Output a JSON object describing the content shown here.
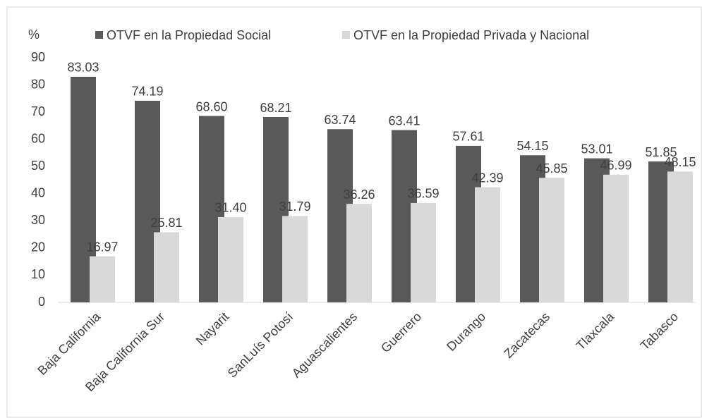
{
  "chart_data": {
    "type": "bar",
    "y_axis_label": "%",
    "categories": [
      "Baja California",
      "Baja California Sur",
      "Nayarit",
      "SanLuís Potosí",
      "Aguascalientes",
      "Guerrero",
      "Durango",
      "Zacatecas",
      "Tlaxcala",
      "Tabasco"
    ],
    "series": [
      {
        "name": "OTVF en la Propiedad Social",
        "color": "#595959",
        "values": [
          83.03,
          74.19,
          68.6,
          68.21,
          63.74,
          63.41,
          57.61,
          54.15,
          53.01,
          51.85
        ],
        "value_labels": [
          "83.03",
          "74.19",
          "68.60",
          "68.21",
          "63.74",
          "63.41",
          "57.61",
          "54.15",
          "53.01",
          "51.85"
        ]
      },
      {
        "name": "OTVF en la Propiedad Privada y Nacional",
        "color": "#d9d9d9",
        "values": [
          16.97,
          25.81,
          31.4,
          31.79,
          36.26,
          36.59,
          42.39,
          45.85,
          46.99,
          48.15
        ],
        "value_labels": [
          "16.97",
          "25.81",
          "31.40",
          "31.79",
          "36.26",
          "36.59",
          "42.39",
          "45.85",
          "46.99",
          "48.15"
        ]
      }
    ],
    "ylim": [
      0,
      90
    ],
    "yticks": [
      0,
      10,
      20,
      30,
      40,
      50,
      60,
      70,
      80,
      90
    ],
    "grid": false,
    "legend": "top"
  }
}
